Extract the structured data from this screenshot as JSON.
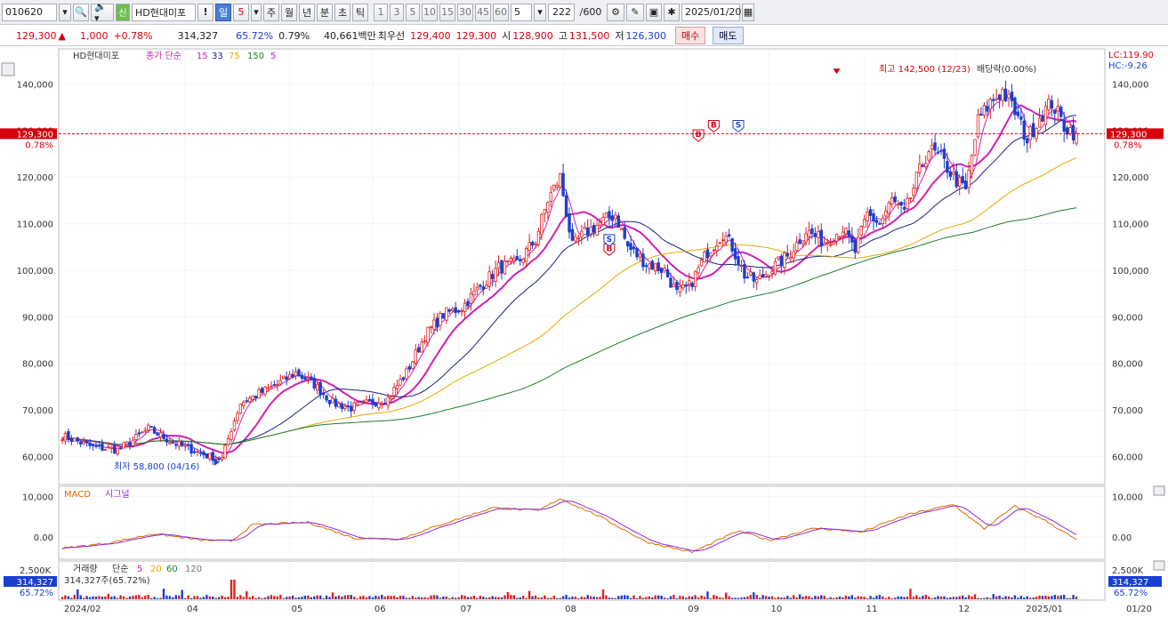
{
  "toolbar": {
    "code": "010620",
    "name_badge": "신",
    "name": "HD현대미포",
    "exclaim": "!",
    "periods": [
      "일",
      "5"
    ],
    "period_units": [
      "주",
      "월",
      "년",
      "분",
      "초",
      "틱"
    ],
    "minute_options": [
      "1",
      "3",
      "5",
      "10",
      "15",
      "30",
      "45",
      "60"
    ],
    "minute_value": "5",
    "count": "222",
    "count_total": "/600",
    "date": "2025/01/20"
  },
  "quote": {
    "price": "129,300",
    "change_arrow": "▲",
    "change": "1,000",
    "change_pct": "+0.78%",
    "volume": "314,327",
    "volume_ratio": "65.72%",
    "turnover_rate": "0.79%",
    "amount": "40,661백만",
    "best_label": "최우선",
    "best_ask": "129,400",
    "best_bid": "129,300",
    "open_label": "시",
    "open": "128,900",
    "high_label": "고",
    "high": "131,500",
    "low_label": "저",
    "low": "126,300",
    "buy_label": "매수",
    "sell_label": "매도"
  },
  "price_panel": {
    "legend_name": "HD현대미포",
    "legend_type": "종가 단순",
    "ma_labels": [
      "15",
      "33",
      "75",
      "150",
      "5"
    ],
    "ma_colors": [
      "#d11fb4",
      "#1a237e",
      "#e6a800",
      "#1b7d2c",
      "#d11fb4"
    ],
    "lc": "LC:119.90",
    "hc": "HC:-9.26",
    "high_note": "최고 142,500 (12/23)",
    "low_note": "최저 58,800 (04/16)",
    "event_note": "배당락(0.00%)",
    "current_price_tag": "129,300",
    "current_pct_tag": "0.78%",
    "y_ticks": [
      "140,000",
      "130,000",
      "120,000",
      "110,000",
      "100,000",
      "90,000",
      "80,000",
      "70,000",
      "60,000"
    ],
    "y_tick_values": [
      140000,
      130000,
      120000,
      110000,
      100000,
      90000,
      80000,
      70000,
      60000
    ],
    "signals": [
      {
        "label": "B",
        "type": "buy",
        "idx": 178,
        "price": 104500
      },
      {
        "label": "S",
        "type": "sell",
        "idx": 178,
        "price": 106500
      },
      {
        "label": "B",
        "type": "buy",
        "idx": 207,
        "price": 129000
      },
      {
        "label": "B",
        "type": "buy",
        "idx": 212,
        "price": 131000
      },
      {
        "label": "S",
        "type": "sell",
        "idx": 220,
        "price": 131000
      }
    ]
  },
  "macd_panel": {
    "title": "MACD",
    "signal_label": "시그널",
    "y_ticks": [
      "10,000",
      "0.00"
    ],
    "y_tick_values": [
      10000,
      0
    ]
  },
  "volume_panel": {
    "title": "거래량",
    "ma_type": "단순",
    "ma_labels": [
      "5",
      "20",
      "60",
      "120"
    ],
    "ma_colors": [
      "#d11fb4",
      "#e6a800",
      "#1b7d2c",
      "#777777"
    ],
    "top_tick": "2,500K",
    "current_note": "314,327주(65.72%)",
    "left_tag_value": "314,327",
    "left_tag_pct": "65.72%",
    "right_tag_value": "314,327",
    "right_tag_pct": "65.72%"
  },
  "x_axis": {
    "labels": [
      "2024/02",
      "04",
      "05",
      "06",
      "07",
      "08",
      "09",
      "10",
      "11",
      "12",
      "2025/01"
    ],
    "label_idx": [
      0,
      40,
      74,
      101,
      129,
      163,
      203,
      230,
      261,
      291,
      313
    ],
    "right_label": "01/20"
  },
  "chart_data": {
    "type": "candlestick",
    "title": "HD현대미포",
    "x_range": [
      "2024/02",
      "2025/01/20"
    ],
    "price_range": [
      58800,
      142500
    ],
    "anchor_closes": [
      [
        0,
        64500
      ],
      [
        10,
        62000
      ],
      [
        18,
        61500
      ],
      [
        22,
        63000
      ],
      [
        28,
        66000
      ],
      [
        36,
        63000
      ],
      [
        42,
        61500
      ],
      [
        48,
        60000
      ],
      [
        52,
        59500
      ],
      [
        55,
        66000
      ],
      [
        58,
        71500
      ],
      [
        64,
        73500
      ],
      [
        70,
        75500
      ],
      [
        76,
        78000
      ],
      [
        82,
        75500
      ],
      [
        88,
        71500
      ],
      [
        94,
        70500
      ],
      [
        100,
        71500
      ],
      [
        106,
        72500
      ],
      [
        112,
        78000
      ],
      [
        118,
        86000
      ],
      [
        124,
        90500
      ],
      [
        130,
        92000
      ],
      [
        136,
        96500
      ],
      [
        142,
        100500
      ],
      [
        148,
        101500
      ],
      [
        154,
        106500
      ],
      [
        158,
        115000
      ],
      [
        162,
        120000
      ],
      [
        166,
        105000
      ],
      [
        170,
        108000
      ],
      [
        176,
        110500
      ],
      [
        180,
        112000
      ],
      [
        184,
        105000
      ],
      [
        190,
        101500
      ],
      [
        196,
        100000
      ],
      [
        200,
        95000
      ],
      [
        204,
        96500
      ],
      [
        210,
        104000
      ],
      [
        215,
        108000
      ],
      [
        218,
        105000
      ],
      [
        222,
        99000
      ],
      [
        226,
        97500
      ],
      [
        230,
        100000
      ],
      [
        236,
        103000
      ],
      [
        242,
        108500
      ],
      [
        248,
        106000
      ],
      [
        254,
        109000
      ],
      [
        258,
        104000
      ],
      [
        262,
        112000
      ],
      [
        266,
        110000
      ],
      [
        270,
        115000
      ],
      [
        274,
        112000
      ],
      [
        278,
        119500
      ],
      [
        282,
        126000
      ],
      [
        286,
        124000
      ],
      [
        290,
        120000
      ],
      [
        294,
        117000
      ],
      [
        298,
        132000
      ],
      [
        302,
        136000
      ],
      [
        306,
        138500
      ],
      [
        310,
        134000
      ],
      [
        314,
        128000
      ],
      [
        318,
        133000
      ],
      [
        322,
        136000
      ],
      [
        326,
        131000
      ],
      [
        330,
        129300
      ]
    ],
    "macd_anchors": [
      [
        0,
        -2800
      ],
      [
        15,
        -1500
      ],
      [
        30,
        800
      ],
      [
        45,
        -800
      ],
      [
        55,
        -1000
      ],
      [
        62,
        3000
      ],
      [
        80,
        3600
      ],
      [
        95,
        -300
      ],
      [
        110,
        -500
      ],
      [
        125,
        3500
      ],
      [
        140,
        7200
      ],
      [
        155,
        6500
      ],
      [
        162,
        9500
      ],
      [
        175,
        5000
      ],
      [
        190,
        -1200
      ],
      [
        205,
        -3800
      ],
      [
        220,
        1500
      ],
      [
        230,
        -800
      ],
      [
        245,
        2200
      ],
      [
        260,
        1200
      ],
      [
        275,
        5500
      ],
      [
        290,
        8000
      ],
      [
        300,
        2000
      ],
      [
        310,
        7600
      ],
      [
        320,
        4000
      ],
      [
        326,
        1200
      ],
      [
        330,
        -800
      ]
    ],
    "volume_current": 314327,
    "volume_ratio_pct": 65.72,
    "ma_periods": [
      15,
      33,
      75,
      150,
      5
    ],
    "volume_ma_periods": [
      5,
      20,
      60,
      120
    ]
  }
}
